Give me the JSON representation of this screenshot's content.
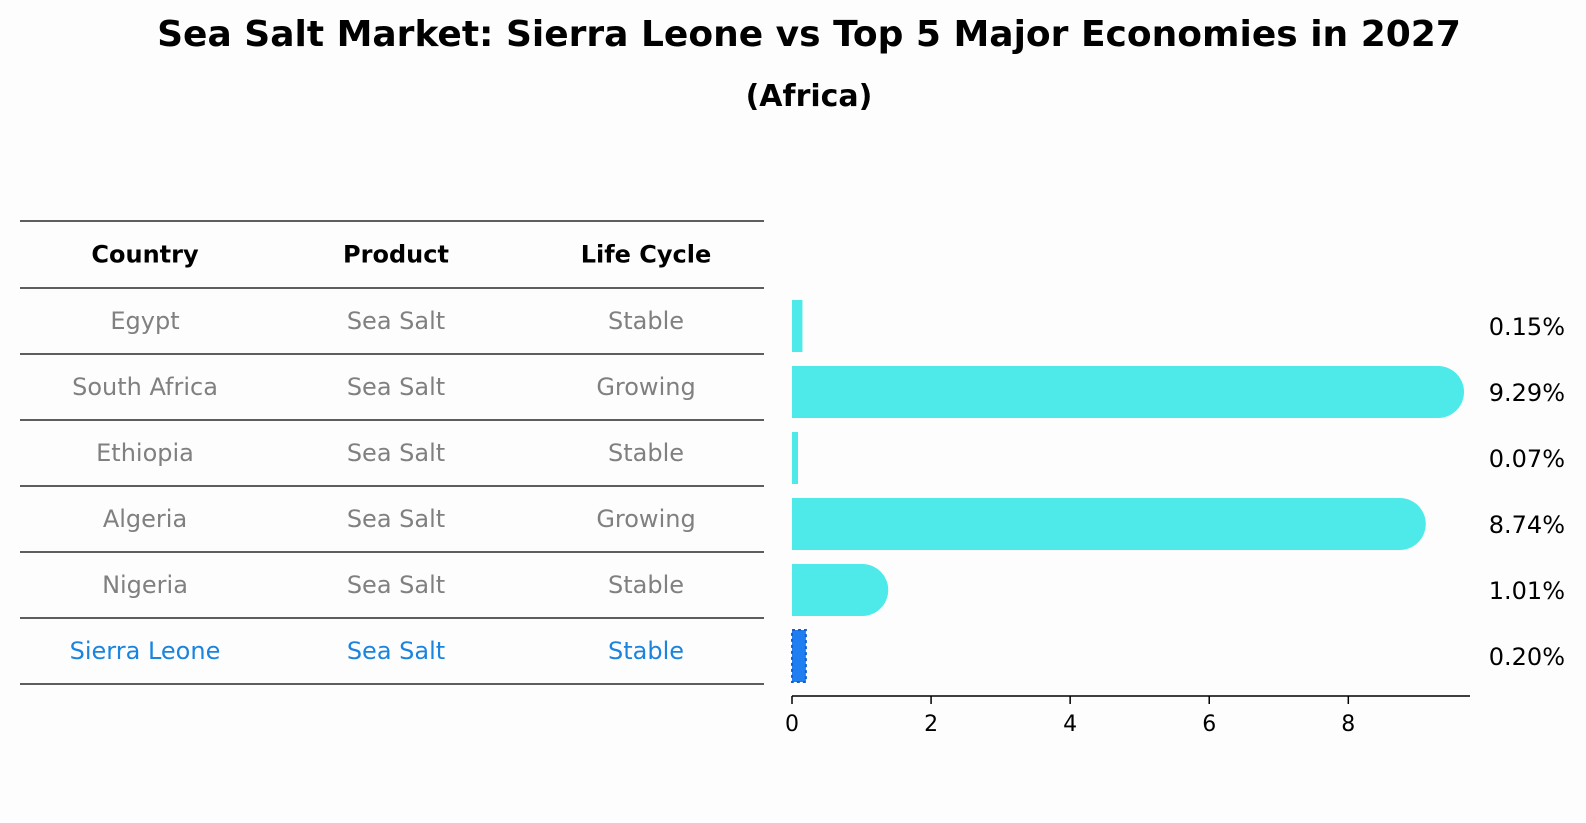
{
  "title": "Sea Salt Market: Sierra Leone vs Top 5 Major Economies in 2027",
  "subtitle": "(Africa)",
  "colors": {
    "bar": "#4ee9e9",
    "highlight": "#1a84de",
    "highlight_bar": "#1f7ef0",
    "muted_text": "#808080",
    "text": "#000000"
  },
  "table": {
    "headers": [
      "Country",
      "Product",
      "Life Cycle"
    ],
    "rows": [
      [
        "Egypt",
        "Sea Salt",
        "Stable"
      ],
      [
        "South Africa",
        "Sea Salt",
        "Growing"
      ],
      [
        "Ethiopia",
        "Sea Salt",
        "Stable"
      ],
      [
        "Algeria",
        "Sea Salt",
        "Growing"
      ],
      [
        "Nigeria",
        "Sea Salt",
        "Stable"
      ],
      [
        "Sierra Leone",
        "Sea Salt",
        "Stable"
      ]
    ],
    "highlight_row": 5
  },
  "chart_data": {
    "type": "bar",
    "orientation": "horizontal",
    "categories": [
      "Egypt",
      "South Africa",
      "Ethiopia",
      "Algeria",
      "Nigeria",
      "Sierra Leone"
    ],
    "values": [
      0.15,
      9.29,
      0.07,
      8.74,
      1.01,
      0.2
    ],
    "value_labels": [
      "0.15%",
      "9.29%",
      "0.07%",
      "8.74%",
      "1.01%",
      "0.20%"
    ],
    "highlight": "Sierra Leone",
    "xlim": [
      0,
      9.75
    ],
    "xticks": [
      0,
      2,
      4,
      6,
      8
    ],
    "grid": false,
    "legend": "none"
  }
}
